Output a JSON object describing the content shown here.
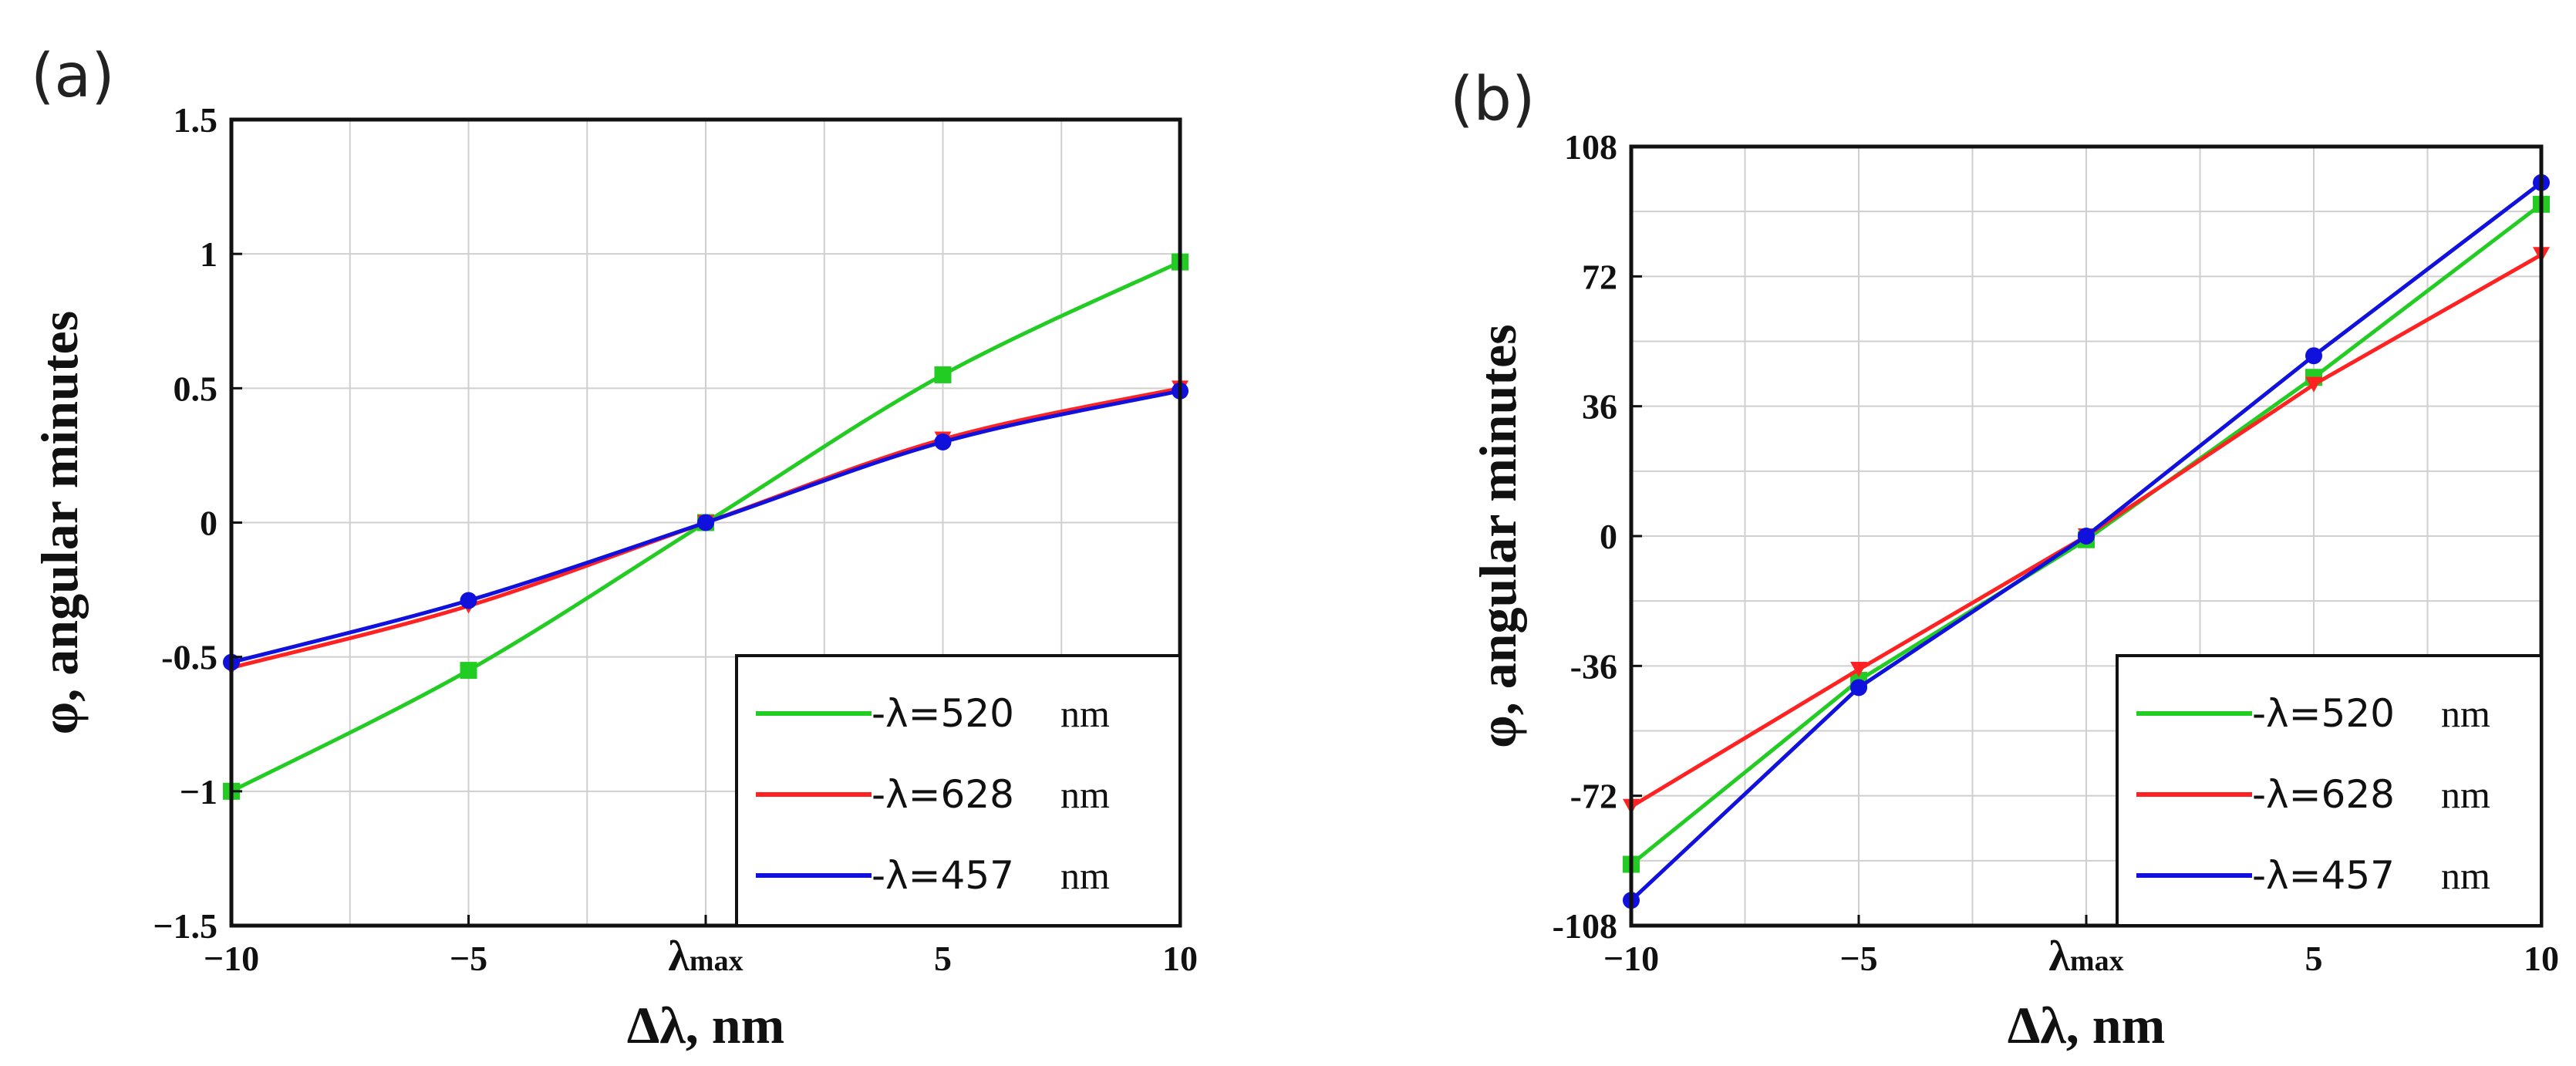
{
  "chart_data": [
    {
      "type": "line",
      "panel": "(a)",
      "xlabel": "Δλ, nm",
      "ylabel": "φ, angular minutes",
      "x": [
        -10,
        -5,
        0,
        5,
        10
      ],
      "xlim": [
        -10,
        10
      ],
      "ylim": [
        -1.5,
        1.5
      ],
      "xticks": [
        {
          "v": -10,
          "label": "−10"
        },
        {
          "v": -5,
          "label": "−5"
        },
        {
          "v": 0,
          "label": "λmax"
        },
        {
          "v": 5,
          "label": "5"
        },
        {
          "v": 10,
          "label": "10"
        }
      ],
      "yticks": [
        {
          "v": 1.5,
          "label": "1.5"
        },
        {
          "v": 1,
          "label": "1"
        },
        {
          "v": 0.5,
          "label": "0.5"
        },
        {
          "v": 0,
          "label": "0"
        },
        {
          "v": -0.5,
          "label": "-0.5"
        },
        {
          "v": -1,
          "label": "−1"
        },
        {
          "v": -1.5,
          "label": "−1.5"
        }
      ],
      "grid": true,
      "legend_position": "bottom-right",
      "series": [
        {
          "name": "-λ=520",
          "unit": "nm",
          "color": "#22cc22",
          "marker": "square",
          "values": [
            -1.0,
            -0.55,
            0.0,
            0.55,
            0.97
          ]
        },
        {
          "name": "-λ=628",
          "unit": "nm",
          "color": "#ff2222",
          "marker": "triangle",
          "values": [
            -0.54,
            -0.31,
            0.0,
            0.31,
            0.5
          ]
        },
        {
          "name": "-λ=457",
          "unit": "nm",
          "color": "#1111dd",
          "marker": "circle",
          "values": [
            -0.52,
            -0.29,
            0.0,
            0.3,
            0.49
          ]
        }
      ]
    },
    {
      "type": "line",
      "panel": "(b)",
      "xlabel": "Δλ, nm",
      "ylabel": "φ, angular minutes",
      "x": [
        -10,
        -5,
        0,
        5,
        10
      ],
      "xlim": [
        -10,
        10
      ],
      "ylim": [
        -108,
        108
      ],
      "xticks": [
        {
          "v": -10,
          "label": "−10"
        },
        {
          "v": -5,
          "label": "−5"
        },
        {
          "v": 0,
          "label": "λmax"
        },
        {
          "v": 5,
          "label": "5"
        },
        {
          "v": 10,
          "label": "10"
        }
      ],
      "yticks": [
        {
          "v": 108,
          "label": "108"
        },
        {
          "v": 72,
          "label": "72"
        },
        {
          "v": 36,
          "label": "36"
        },
        {
          "v": 0,
          "label": "0"
        },
        {
          "v": -36,
          "label": "-36"
        },
        {
          "v": -72,
          "label": "-72"
        },
        {
          "v": -108,
          "label": "-108"
        }
      ],
      "grid": true,
      "legend_position": "bottom-right",
      "series": [
        {
          "name": "-λ=520",
          "unit": "nm",
          "color": "#22cc22",
          "marker": "square",
          "values": [
            -91,
            -40,
            -1,
            44,
            92
          ]
        },
        {
          "name": "-λ=628",
          "unit": "nm",
          "color": "#ff2222",
          "marker": "triangle",
          "values": [
            -75,
            -37,
            0,
            42,
            78
          ]
        },
        {
          "name": "-λ=457",
          "unit": "nm",
          "color": "#1111dd",
          "marker": "circle",
          "values": [
            -101,
            -42,
            0,
            50,
            98
          ]
        }
      ]
    }
  ]
}
